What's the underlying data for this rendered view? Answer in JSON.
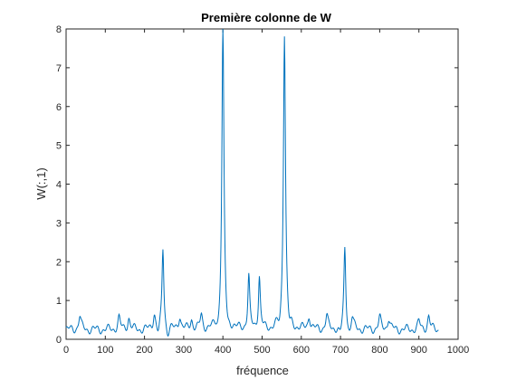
{
  "chart_data": {
    "type": "line",
    "title": "Première colonne de W",
    "xlabel": "fréquence",
    "ylabel": "W(:,1)",
    "xlim": [
      0,
      1000
    ],
    "ylim": [
      0,
      8
    ],
    "xticks": [
      0,
      100,
      200,
      300,
      400,
      500,
      600,
      700,
      800,
      900,
      1000
    ],
    "yticks": [
      0,
      1,
      2,
      3,
      4,
      5,
      6,
      7,
      8
    ],
    "grid": false,
    "box": true,
    "series": [
      {
        "color": "#0072BD",
        "baseline": 0.25,
        "x_end": 950,
        "peaks": [
          {
            "x": 35,
            "y": 0.6
          },
          {
            "x": 135,
            "y": 0.55
          },
          {
            "x": 160,
            "y": 0.55
          },
          {
            "x": 225,
            "y": 0.65
          },
          {
            "x": 247,
            "y": 2.33
          },
          {
            "x": 290,
            "y": 0.6
          },
          {
            "x": 320,
            "y": 0.5
          },
          {
            "x": 345,
            "y": 0.6
          },
          {
            "x": 400,
            "y": 8.0
          },
          {
            "x": 466,
            "y": 1.6
          },
          {
            "x": 493,
            "y": 1.6
          },
          {
            "x": 557,
            "y": 7.9
          },
          {
            "x": 620,
            "y": 0.6
          },
          {
            "x": 665,
            "y": 0.6
          },
          {
            "x": 711,
            "y": 2.33
          },
          {
            "x": 730,
            "y": 0.55
          },
          {
            "x": 800,
            "y": 0.55
          },
          {
            "x": 823,
            "y": 0.55
          },
          {
            "x": 900,
            "y": 0.45
          },
          {
            "x": 925,
            "y": 0.6
          }
        ]
      }
    ]
  }
}
